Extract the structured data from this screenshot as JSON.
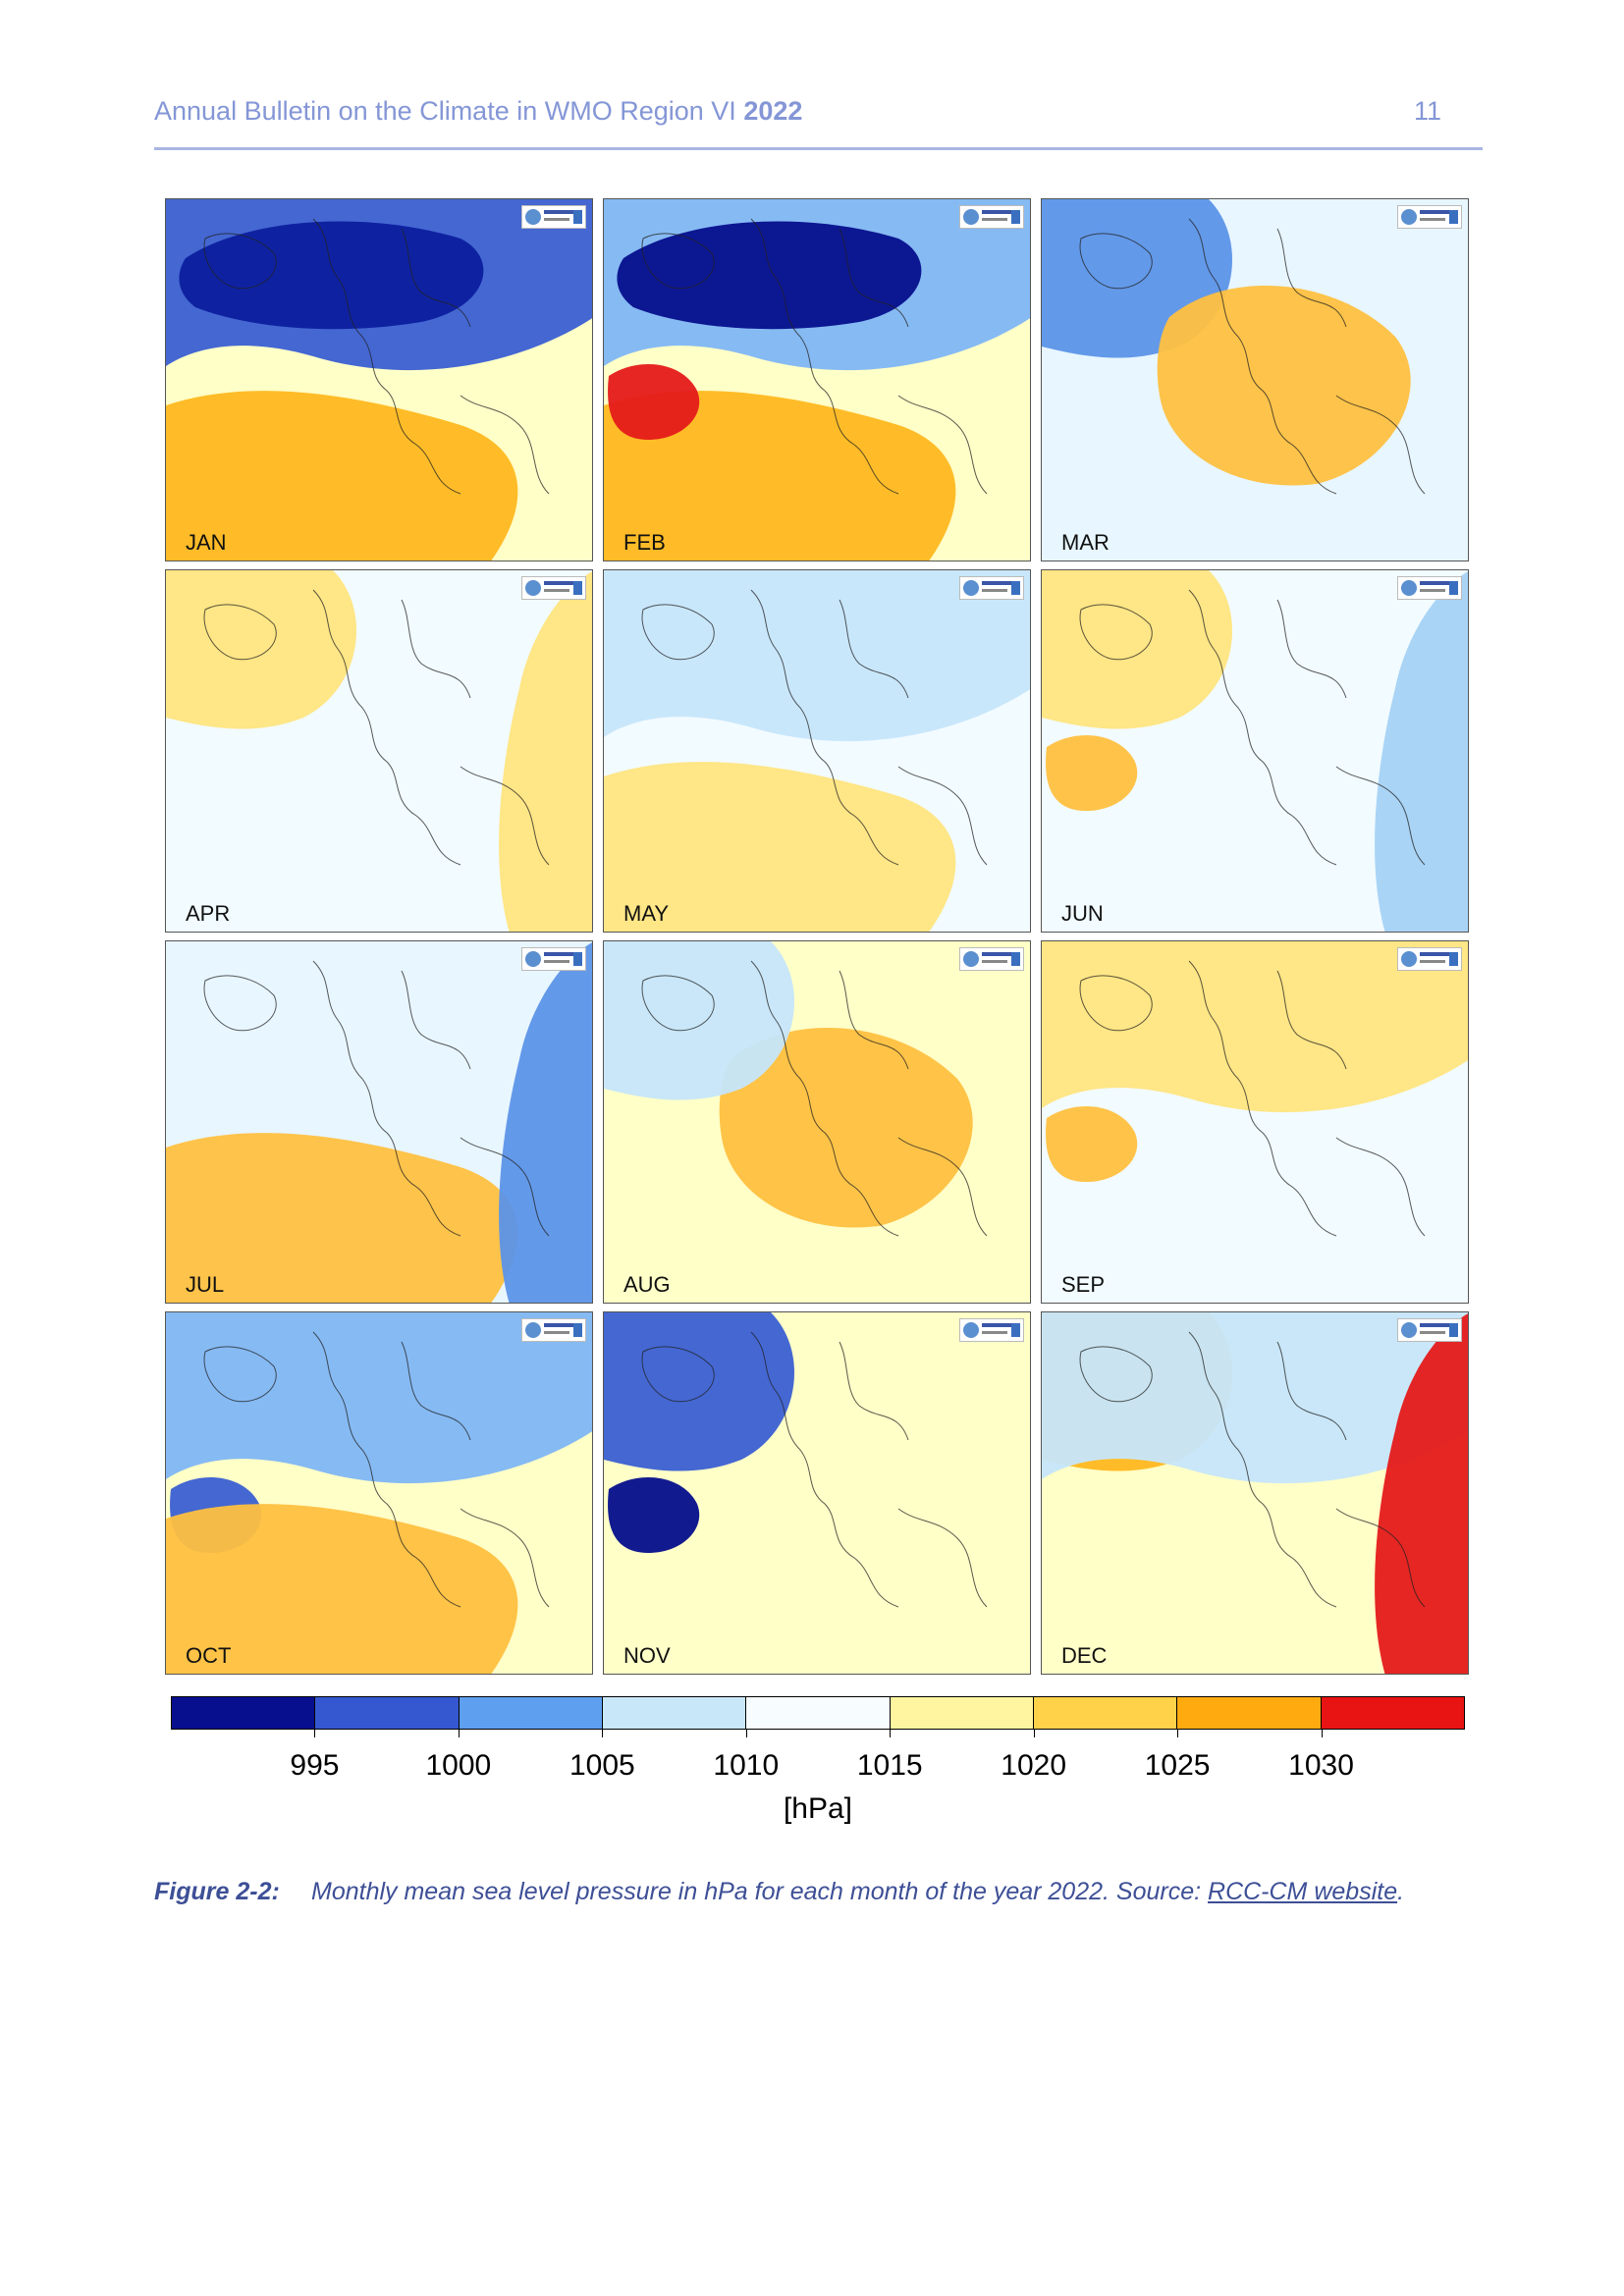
{
  "header": {
    "title_prefix": "Annual Bulletin on the Climate in WMO Region VI",
    "title_year": "2022",
    "page_number": "11"
  },
  "maps": [
    {
      "month": "JAN",
      "bg": "#ffffc8",
      "blobs": [
        {
          "shape": "upper-band",
          "color": "#3a5fd3"
        },
        {
          "shape": "upper-core",
          "color": "#0c1f9e"
        },
        {
          "shape": "lower-left",
          "color": "#ffb820"
        }
      ]
    },
    {
      "month": "FEB",
      "bg": "#ffffc8",
      "blobs": [
        {
          "shape": "upper-band",
          "color": "#7fb6f5"
        },
        {
          "shape": "upper-core",
          "color": "#050e8c"
        },
        {
          "shape": "lower-left",
          "color": "#ffb820"
        },
        {
          "shape": "small-left",
          "color": "#e51a1a"
        }
      ]
    },
    {
      "month": "MAR",
      "bg": "#e8f6ff",
      "blobs": [
        {
          "shape": "left-upper",
          "color": "#5c94e8"
        },
        {
          "shape": "center",
          "color": "#ffc040"
        }
      ]
    },
    {
      "month": "APR",
      "bg": "#f2fbff",
      "blobs": [
        {
          "shape": "left-upper",
          "color": "#ffe580"
        },
        {
          "shape": "right-edge",
          "color": "#ffe580"
        }
      ]
    },
    {
      "month": "MAY",
      "bg": "#f2fbff",
      "blobs": [
        {
          "shape": "upper-band",
          "color": "#c6e6fb"
        },
        {
          "shape": "lower-left",
          "color": "#ffe580"
        }
      ]
    },
    {
      "month": "JUN",
      "bg": "#f2fbff",
      "blobs": [
        {
          "shape": "left-upper",
          "color": "#ffe580"
        },
        {
          "shape": "small-left",
          "color": "#ffc040"
        },
        {
          "shape": "right-edge",
          "color": "#a4d2f5"
        }
      ]
    },
    {
      "month": "JUL",
      "bg": "#e8f6ff",
      "blobs": [
        {
          "shape": "lower-left",
          "color": "#ffc040"
        },
        {
          "shape": "right-edge",
          "color": "#5c94e8"
        }
      ]
    },
    {
      "month": "AUG",
      "bg": "#ffffc8",
      "blobs": [
        {
          "shape": "center",
          "color": "#ffc040"
        },
        {
          "shape": "left-upper",
          "color": "#c6e6fb"
        }
      ]
    },
    {
      "month": "SEP",
      "bg": "#f2fbff",
      "blobs": [
        {
          "shape": "upper-band",
          "color": "#ffe580"
        },
        {
          "shape": "small-left",
          "color": "#ffc040"
        }
      ]
    },
    {
      "month": "OCT",
      "bg": "#ffffc8",
      "blobs": [
        {
          "shape": "upper-band",
          "color": "#7fb6f5"
        },
        {
          "shape": "small-left",
          "color": "#3a5fd3"
        },
        {
          "shape": "lower-left",
          "color": "#ffc040"
        }
      ]
    },
    {
      "month": "NOV",
      "bg": "#ffffc8",
      "blobs": [
        {
          "shape": "left-upper",
          "color": "#3a5fd3"
        },
        {
          "shape": "small-left",
          "color": "#050e8c"
        }
      ]
    },
    {
      "month": "DEC",
      "bg": "#ffffc8",
      "blobs": [
        {
          "shape": "left-upper",
          "color": "#ffb820"
        },
        {
          "shape": "upper-band",
          "color": "#c6e6fb"
        },
        {
          "shape": "right-edge",
          "color": "#e51a1a"
        }
      ]
    }
  ],
  "colorbar": {
    "colors": [
      "#070f8f",
      "#3558d0",
      "#5f9ff0",
      "#c8e8fa",
      "#f7fcff",
      "#fff5a0",
      "#ffd24a",
      "#ffab10",
      "#e81414"
    ],
    "ticks": [
      "995",
      "1000",
      "1005",
      "1010",
      "1015",
      "1020",
      "1025",
      "1030"
    ],
    "units": "[hPa]"
  },
  "caption": {
    "label": "Figure 2-2:",
    "text": "Monthly mean sea level pressure in hPa for each month of the year 2022. Source: ",
    "link": "RCC-CM website",
    "end": "."
  }
}
